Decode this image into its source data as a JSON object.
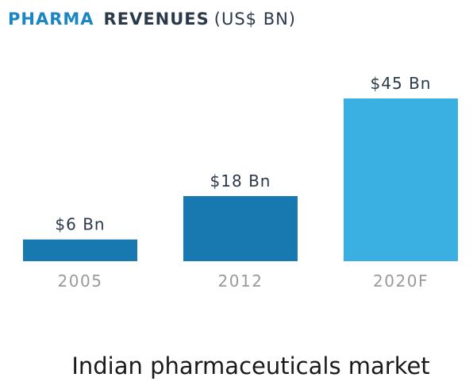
{
  "chart_data": {
    "type": "bar",
    "title_parts": [
      "PHARMA",
      "REVENUES",
      "(US$ BN)"
    ],
    "categories": [
      "2005",
      "2012",
      "2020F"
    ],
    "values": [
      6,
      18,
      45
    ],
    "data_labels": [
      "$6 Bn",
      "$18 Bn",
      "$45 Bn"
    ],
    "colors": [
      "#1779b0",
      "#1779b0",
      "#3aafe2"
    ],
    "ylim": [
      0,
      45
    ],
    "grid": false,
    "legend": "none"
  },
  "caption": "Indian pharmaceuticals market"
}
